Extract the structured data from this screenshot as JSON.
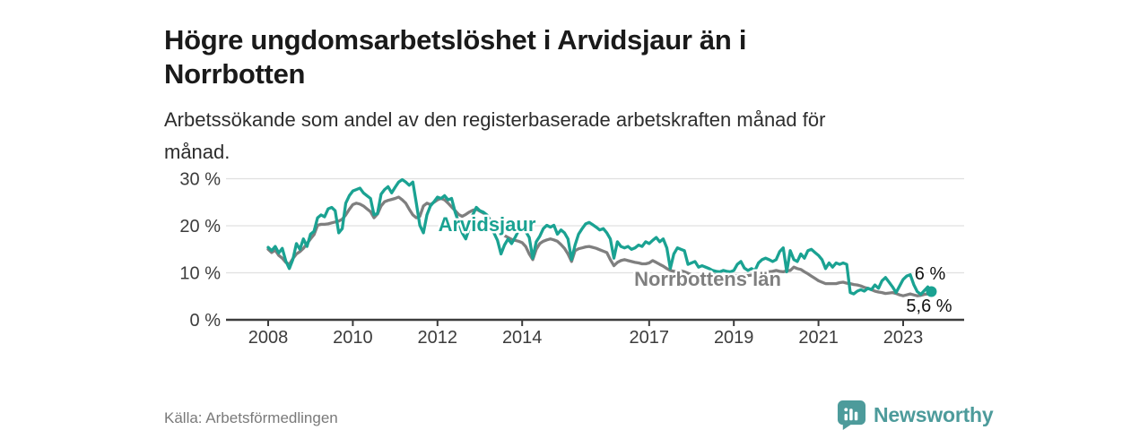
{
  "header": {
    "title_line1": "Högre ungdomsarbetslöshet i Arvidsjaur än i",
    "title_line2": "Norrbotten",
    "subtitle_line1": "Arbetssökande som andel av den registerbaserade arbetskraften månad för",
    "subtitle_line2": "månad."
  },
  "footer": {
    "source": "Källa: Arbetsförmedlingen",
    "brand": "Newsworthy"
  },
  "colors": {
    "arvidsjaur": "#1aa292",
    "norrbotten": "#7f7f7f",
    "grid": "#e0e0e0",
    "axis": "#3c3c3c",
    "tick_text": "#3c3c3c",
    "end_label_text": "#111111",
    "brand": "#4d9b9b"
  },
  "chart_data": {
    "type": "line",
    "title": "Högre ungdomsarbetslöshet i Arvidsjaur än i Norrbotten",
    "subtitle": "Arbetssökande som andel av den registerbaserade arbetskraften månad för månad.",
    "source": "Källa: Arbetsförmedlingen",
    "unit": "%",
    "frequency": "monthly",
    "x_start": "2008-01",
    "x_end": "2023-09",
    "xlim": [
      2008.0,
      2024.4
    ],
    "ylim": [
      0,
      32
    ],
    "grid": true,
    "x_ticks": {
      "years": [
        2008,
        2010,
        2012,
        2014,
        2017,
        2019,
        2021,
        2023
      ],
      "labels": [
        "2008",
        "2010",
        "2012",
        "2014",
        "2017",
        "2019",
        "2021",
        "2023"
      ]
    },
    "y_ticks": {
      "values": [
        0,
        10,
        20,
        30
      ],
      "labels": [
        "0 %",
        "10 %",
        "20 %",
        "30 %"
      ]
    },
    "series": [
      {
        "name": "Arvidsjaur",
        "end_label": "6 %",
        "end_value": 6.0,
        "values": [
          15.4,
          14.7,
          15.6,
          14.2,
          15.2,
          12.5,
          10.9,
          12.8,
          16.2,
          15,
          17.2,
          15.6,
          18.2,
          18.8,
          21.7,
          22.3,
          21.9,
          23.6,
          23.9,
          23.2,
          18.5,
          19.4,
          24.8,
          26.4,
          27.4,
          27.7,
          28,
          27,
          26.4,
          25.8,
          22.3,
          22.6,
          26.7,
          27.7,
          28.3,
          27,
          28.2,
          29.3,
          29.8,
          29.3,
          28.6,
          29.3,
          24.8,
          20.1,
          18.5,
          22.3,
          24.2,
          25.1,
          26.1,
          25.8,
          26.4,
          25.5,
          25.8,
          22.9,
          20.7,
          18.5,
          17.2,
          19.4,
          22.3,
          23.9,
          23.2,
          22.9,
          22.3,
          21,
          18.5,
          16.9,
          14,
          15.9,
          17.2,
          16.2,
          17.5,
          19,
          19.4,
          18.8,
          17.5,
          13.1,
          16.6,
          17.8,
          19.4,
          20.1,
          19.7,
          20.1,
          18.2,
          19.1,
          18.5,
          17.2,
          12.8,
          15.9,
          18.2,
          19.4,
          20.4,
          20.7,
          20.2,
          19.7,
          19.1,
          19.4,
          18.5,
          17.2,
          13.1,
          16.6,
          15.6,
          15.3,
          15.6,
          15,
          15.3,
          15.9,
          15.6,
          16.6,
          16.2,
          16.9,
          17.5,
          16.6,
          17.2,
          15.3,
          10.9,
          14,
          15.3,
          15,
          14.7,
          11.8,
          12.1,
          12.4,
          11.2,
          11.5,
          11.2,
          10.9,
          10.5,
          10.3,
          10.2,
          10.5,
          10.3,
          10.2,
          10.5,
          11.8,
          12.4,
          11,
          10.5,
          10.9,
          10.5,
          12.1,
          12.8,
          13.1,
          12.8,
          12.4,
          12.8,
          14.5,
          15.3,
          10.2,
          14.7,
          12.8,
          12.4,
          14,
          13.1,
          14.7,
          15,
          14.3,
          13.7,
          12.8,
          10.9,
          12.1,
          11.2,
          12.1,
          11.8,
          12.1,
          11.8,
          5.8,
          5.5,
          6.1,
          6.4,
          6.1,
          6.7,
          6.4,
          7.4,
          6.7,
          8.3,
          9,
          8,
          7,
          5.8,
          7.2,
          8.6,
          9.3,
          9.6,
          7.5,
          6,
          5.4,
          6.2,
          7,
          6
        ]
      },
      {
        "name": "Norrbottens län",
        "end_label": "5,6 %",
        "end_value": 5.6,
        "values": [
          15,
          14.3,
          14.8,
          13.7,
          13.1,
          12.2,
          11.8,
          13,
          14,
          14.5,
          15.2,
          16.2,
          17.2,
          18.1,
          20.1,
          20.3,
          20.3,
          20.4,
          20.6,
          20.8,
          21,
          21.4,
          22.3,
          23.5,
          24.5,
          24.8,
          24.6,
          24.2,
          23.6,
          23,
          21.7,
          22.5,
          24.2,
          25.1,
          25.4,
          25.6,
          25.8,
          26.1,
          25.5,
          24.8,
          23.5,
          22.3,
          21.7,
          22,
          24.2,
          24.8,
          24.5,
          25,
          25.5,
          25.8,
          25.5,
          24.8,
          24,
          23.2,
          22.4,
          22,
          22.4,
          22.9,
          23.3,
          23.5,
          23.1,
          22.7,
          22.2,
          21.2,
          20.2,
          19.2,
          18.4,
          17.9,
          17.5,
          17.1,
          16.9,
          16.7,
          16.4,
          15.6,
          14,
          12.8,
          15,
          16.2,
          16.7,
          17,
          17.2,
          17,
          16.7,
          16,
          15.2,
          14,
          12.4,
          14.7,
          15.1,
          15.3,
          15.5,
          15.6,
          15.4,
          15.2,
          14.9,
          14.6,
          14.3,
          12.8,
          11.5,
          12.2,
          12.6,
          12.8,
          12.6,
          12.4,
          12.2,
          12.1,
          11.9,
          11.9,
          12.1,
          12.6,
          12.2,
          11.8,
          11.4,
          10.9,
          10.5,
          10.3,
          10.3,
          10.4,
          10.2,
          9.9,
          9.6,
          9.4,
          9.3,
          9.4,
          9.5,
          9.6,
          9.7,
          9.6,
          9.5,
          9.4,
          9.3,
          9.3,
          9.3,
          9.4,
          9.4,
          9.3,
          9.4,
          9.5,
          9.6,
          9.8,
          10,
          10.2,
          10.2,
          10.3,
          10.5,
          10.3,
          10.2,
          10.4,
          10.5,
          11.2,
          10.9,
          10.7,
          10.2,
          9.8,
          9.3,
          8.8,
          8.3,
          8,
          7.7,
          7.7,
          7.7,
          7.7,
          7.9,
          8,
          7.8,
          7.7,
          7.5,
          7.4,
          7.2,
          6.9,
          6.7,
          6.4,
          6.1,
          5.9,
          5.8,
          5.6,
          5.7,
          5.8,
          5.6,
          5.3,
          5.1,
          5.3,
          5.5,
          5.3,
          5.1,
          5.2,
          5.4,
          5.5,
          5.6
        ]
      }
    ],
    "legend_position": "inline-labels"
  }
}
